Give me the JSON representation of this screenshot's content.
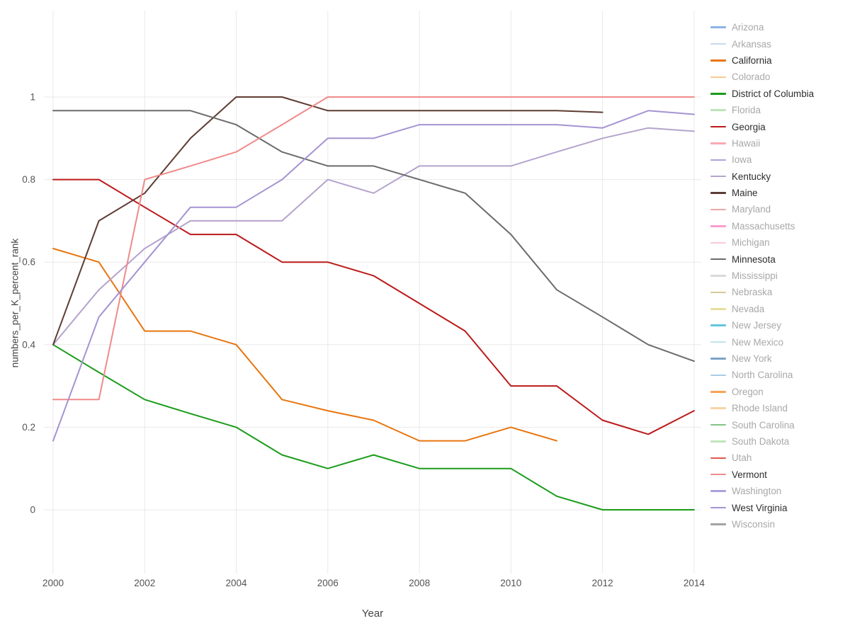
{
  "chart_data": {
    "type": "line",
    "title": "",
    "xlabel": "Year",
    "ylabel": "numbers_per_K_percent_rank",
    "x_ticks": [
      "2000",
      "2002",
      "2004",
      "2006",
      "2008",
      "2010",
      "2012",
      "2014"
    ],
    "x_tick_values": [
      2000,
      2002,
      2004,
      2006,
      2008,
      2010,
      2012,
      2014
    ],
    "y_ticks": [
      "0",
      "0.2",
      "0.4",
      "0.6",
      "0.8",
      "1"
    ],
    "y_tick_values": [
      0,
      0.2,
      0.4,
      0.6,
      0.8,
      1
    ],
    "xlim": [
      1999.799,
      2014.157
    ],
    "ylim": [
      -0.1544,
      1.2093
    ],
    "grid": true,
    "legend_position": "right",
    "grid_color": "#e9e9e9",
    "tick_color": "#545454",
    "series": [
      {
        "name": "California",
        "color": "#e8750e",
        "x": [
          2000,
          2001,
          2002,
          2003,
          2004,
          2005,
          2006,
          2007,
          2008,
          2009,
          2010,
          2011
        ],
        "y": [
          0.633,
          0.6,
          0.433,
          0.433,
          0.4,
          0.267,
          0.24,
          0.217,
          0.167,
          0.167,
          0.2,
          0.167
        ]
      },
      {
        "name": "District of Columbia",
        "color": "#1a9c1a",
        "x": [
          2000,
          2001,
          2002,
          2003,
          2004,
          2005,
          2006,
          2007,
          2008,
          2009,
          2010,
          2011,
          2012,
          2013,
          2014
        ],
        "y": [
          0.4,
          0.333,
          0.267,
          0.233,
          0.2,
          0.133,
          0.1,
          0.133,
          0.1,
          0.1,
          0.1,
          0.033,
          0,
          0,
          0
        ]
      },
      {
        "name": "Georgia",
        "color": "#bc1a1a",
        "x": [
          2000,
          2001,
          2002,
          2003,
          2004,
          2005,
          2006,
          2007,
          2008,
          2009,
          2010,
          2011,
          2012,
          2013,
          2014
        ],
        "y": [
          0.8,
          0.8,
          0.733,
          0.667,
          0.667,
          0.6,
          0.6,
          0.567,
          0.5,
          0.433,
          0.3,
          0.3,
          0.217,
          0.183,
          0.24
        ]
      },
      {
        "name": "Kentucky",
        "color": "#b5a3cd",
        "x": [
          2000,
          2001,
          2002,
          2003,
          2004,
          2005,
          2006,
          2007,
          2008,
          2009,
          2010,
          2011,
          2012,
          2013,
          2014
        ],
        "y": [
          0.4,
          0.533,
          0.633,
          0.7,
          0.7,
          0.7,
          0.8,
          0.767,
          0.833,
          0.833,
          0.833,
          0.867,
          0.9,
          0.925,
          0.917
        ]
      },
      {
        "name": "Maine",
        "color": "#5e3c33",
        "x": [
          2000,
          2001,
          2002,
          2003,
          2004,
          2005,
          2006,
          2007,
          2008,
          2009,
          2010,
          2011,
          2012
        ],
        "y": [
          0.4,
          0.7,
          0.767,
          0.9,
          1,
          1,
          0.967,
          0.967,
          0.967,
          0.967,
          0.967,
          0.967,
          0.963
        ]
      },
      {
        "name": "Minnesota",
        "color": "#6b6b6b",
        "x": [
          2000,
          2001,
          2002,
          2003,
          2004,
          2005,
          2006,
          2007,
          2008,
          2009,
          2010,
          2011,
          2012,
          2013,
          2014
        ],
        "y": [
          0.967,
          0.967,
          0.967,
          0.967,
          0.933,
          0.867,
          0.833,
          0.833,
          0.8,
          0.767,
          0.667,
          0.533,
          0.467,
          0.4,
          0.36
        ]
      },
      {
        "name": "Vermont",
        "color": "#f08a8a",
        "x": [
          2000,
          2001,
          2002,
          2003,
          2004,
          2005,
          2006,
          2007,
          2008,
          2009,
          2010,
          2011,
          2012,
          2013,
          2014
        ],
        "y": [
          0.267,
          0.267,
          0.8,
          0.833,
          0.867,
          0.933,
          1,
          1,
          1,
          1,
          1,
          1,
          1,
          1,
          1
        ]
      },
      {
        "name": "West Virginia",
        "color": "#a593d2",
        "x": [
          2000,
          2001,
          2002,
          2003,
          2004,
          2005,
          2006,
          2007,
          2008,
          2009,
          2010,
          2011,
          2012,
          2013,
          2014
        ],
        "y": [
          0.167,
          0.467,
          0.6,
          0.733,
          0.733,
          0.8,
          0.9,
          0.9,
          0.933,
          0.933,
          0.933,
          0.933,
          0.925,
          0.967,
          0.958
        ]
      }
    ],
    "legend": [
      {
        "label": "Arizona",
        "color": "#8ab4e8",
        "active": false
      },
      {
        "label": "Arkansas",
        "color": "#c9d8ec",
        "active": false
      },
      {
        "label": "California",
        "color": "#e8750e",
        "active": true
      },
      {
        "label": "Colorado",
        "color": "#f7c894",
        "active": false
      },
      {
        "label": "District of Columbia",
        "color": "#1a9c1a",
        "active": true
      },
      {
        "label": "Florida",
        "color": "#bce4b8",
        "active": false
      },
      {
        "label": "Georgia",
        "color": "#bc1a1a",
        "active": true
      },
      {
        "label": "Hawaii",
        "color": "#f9aab4",
        "active": false
      },
      {
        "label": "Iowa",
        "color": "#aba3dc",
        "active": false
      },
      {
        "label": "Kentucky",
        "color": "#b5a3cd",
        "active": true
      },
      {
        "label": "Maine",
        "color": "#5e3c33",
        "active": true
      },
      {
        "label": "Maryland",
        "color": "#eba9a1",
        "active": false
      },
      {
        "label": "Massachusetts",
        "color": "#fb9cd0",
        "active": false
      },
      {
        "label": "Michigan",
        "color": "#f6cbd8",
        "active": false
      },
      {
        "label": "Minnesota",
        "color": "#6b6b6b",
        "active": true
      },
      {
        "label": "Mississippi",
        "color": "#d9d9d9",
        "active": false
      },
      {
        "label": "Nebraska",
        "color": "#d2cb96",
        "active": false
      },
      {
        "label": "Nevada",
        "color": "#e6df9d",
        "active": false
      },
      {
        "label": "New Jersey",
        "color": "#62c6dc",
        "active": false
      },
      {
        "label": "New Mexico",
        "color": "#bfe3ee",
        "active": false
      },
      {
        "label": "New York",
        "color": "#7ba3c8",
        "active": false
      },
      {
        "label": "North Carolina",
        "color": "#abcbe3",
        "active": false
      },
      {
        "label": "Oregon",
        "color": "#f9a258",
        "active": false
      },
      {
        "label": "Rhode Island",
        "color": "#fad3a6",
        "active": false
      },
      {
        "label": "South Carolina",
        "color": "#85c285",
        "active": false
      },
      {
        "label": "South Dakota",
        "color": "#c1e6ba",
        "active": false
      },
      {
        "label": "Utah",
        "color": "#e0584c",
        "active": false
      },
      {
        "label": "Vermont",
        "color": "#f08a8a",
        "active": true
      },
      {
        "label": "Washington",
        "color": "#aba2dd",
        "active": false
      },
      {
        "label": "West Virginia",
        "color": "#a593d2",
        "active": true
      },
      {
        "label": "Wisconsin",
        "color": "#a3a3a3",
        "active": false
      }
    ]
  }
}
